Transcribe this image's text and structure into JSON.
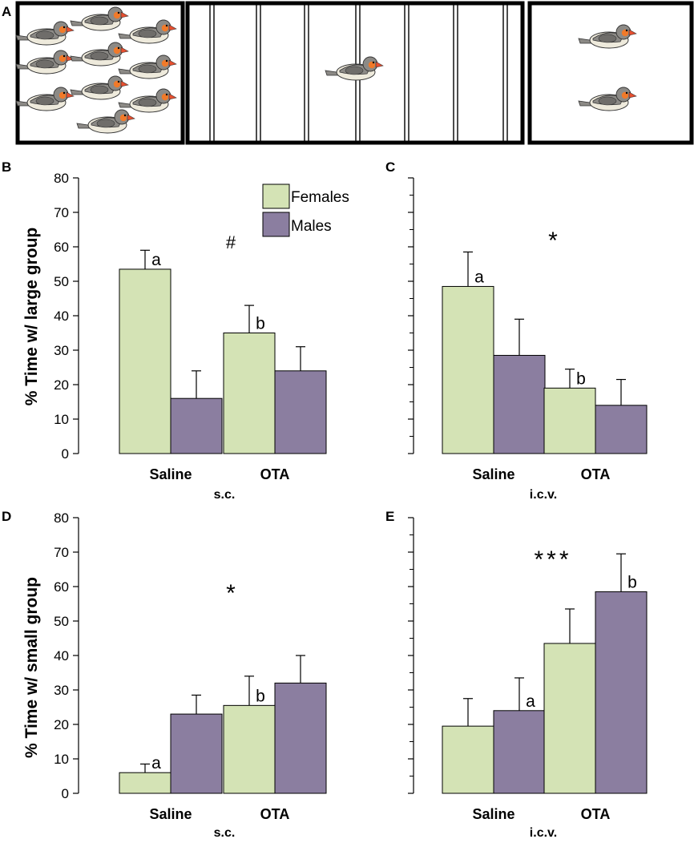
{
  "colors": {
    "females": "#d4e3b5",
    "males": "#8b7ea0",
    "axis": "#000000",
    "bird_body": "#8c8a86",
    "bird_belly": "#eeeadc",
    "bird_cheek": "#f07a2a",
    "bird_beak": "#e74f2f"
  },
  "legend": {
    "females": "Females",
    "males": "Males"
  },
  "panel_a": {
    "letter": "A",
    "left_birds": 10,
    "middle_birds": 1,
    "right_birds": 2
  },
  "chart_data": [
    {
      "panel": "B",
      "type": "bar",
      "title": "",
      "ylabel": "% Time w/ large group",
      "xlabel": "s.c.",
      "categories": [
        "Saline",
        "OTA"
      ],
      "ylim": [
        0,
        80
      ],
      "yticks": [
        0,
        10,
        20,
        30,
        40,
        50,
        60,
        70,
        80
      ],
      "show_tick_labels": true,
      "series": [
        {
          "name": "Females",
          "values": [
            53.5,
            35
          ],
          "errors": [
            5.5,
            8
          ],
          "letters": [
            "a",
            "b"
          ]
        },
        {
          "name": "Males",
          "values": [
            16,
            24
          ],
          "errors": [
            8,
            7
          ],
          "letters": [
            "",
            ""
          ]
        }
      ],
      "significance": "#",
      "legend": true
    },
    {
      "panel": "C",
      "type": "bar",
      "title": "",
      "ylabel": "",
      "xlabel": "i.c.v.",
      "categories": [
        "Saline",
        "OTA"
      ],
      "ylim": [
        0,
        80
      ],
      "yticks": [
        0,
        10,
        20,
        30,
        40,
        50,
        60,
        70,
        80
      ],
      "show_tick_labels": false,
      "series": [
        {
          "name": "Females",
          "values": [
            48.5,
            19
          ],
          "errors": [
            10,
            5.5
          ],
          "letters": [
            "a",
            "b"
          ]
        },
        {
          "name": "Males",
          "values": [
            28.5,
            14
          ],
          "errors": [
            10.5,
            7.5
          ],
          "letters": [
            "",
            ""
          ]
        }
      ],
      "significance": "*",
      "legend": false
    },
    {
      "panel": "D",
      "type": "bar",
      "title": "",
      "ylabel": "% Time w/ small group",
      "xlabel": "s.c.",
      "categories": [
        "Saline",
        "OTA"
      ],
      "ylim": [
        0,
        80
      ],
      "yticks": [
        0,
        10,
        20,
        30,
        40,
        50,
        60,
        70,
        80
      ],
      "show_tick_labels": true,
      "series": [
        {
          "name": "Females",
          "values": [
            6,
            25.5
          ],
          "errors": [
            2.5,
            8.5
          ],
          "letters": [
            "a",
            "b"
          ]
        },
        {
          "name": "Males",
          "values": [
            23,
            32
          ],
          "errors": [
            5.5,
            8
          ],
          "letters": [
            "",
            ""
          ]
        }
      ],
      "significance": "*",
      "legend": false
    },
    {
      "panel": "E",
      "type": "bar",
      "title": "",
      "ylabel": "",
      "xlabel": "i.c.v.",
      "categories": [
        "Saline",
        "OTA"
      ],
      "ylim": [
        0,
        80
      ],
      "yticks": [
        0,
        10,
        20,
        30,
        40,
        50,
        60,
        70,
        80
      ],
      "show_tick_labels": false,
      "series": [
        {
          "name": "Females",
          "values": [
            19.5,
            43.5
          ],
          "errors": [
            8,
            10
          ],
          "letters": [
            "",
            ""
          ]
        },
        {
          "name": "Males",
          "values": [
            24,
            58.5
          ],
          "errors": [
            9.5,
            11
          ],
          "letters": [
            "a",
            "b"
          ]
        }
      ],
      "significance": "***",
      "legend": false
    }
  ]
}
